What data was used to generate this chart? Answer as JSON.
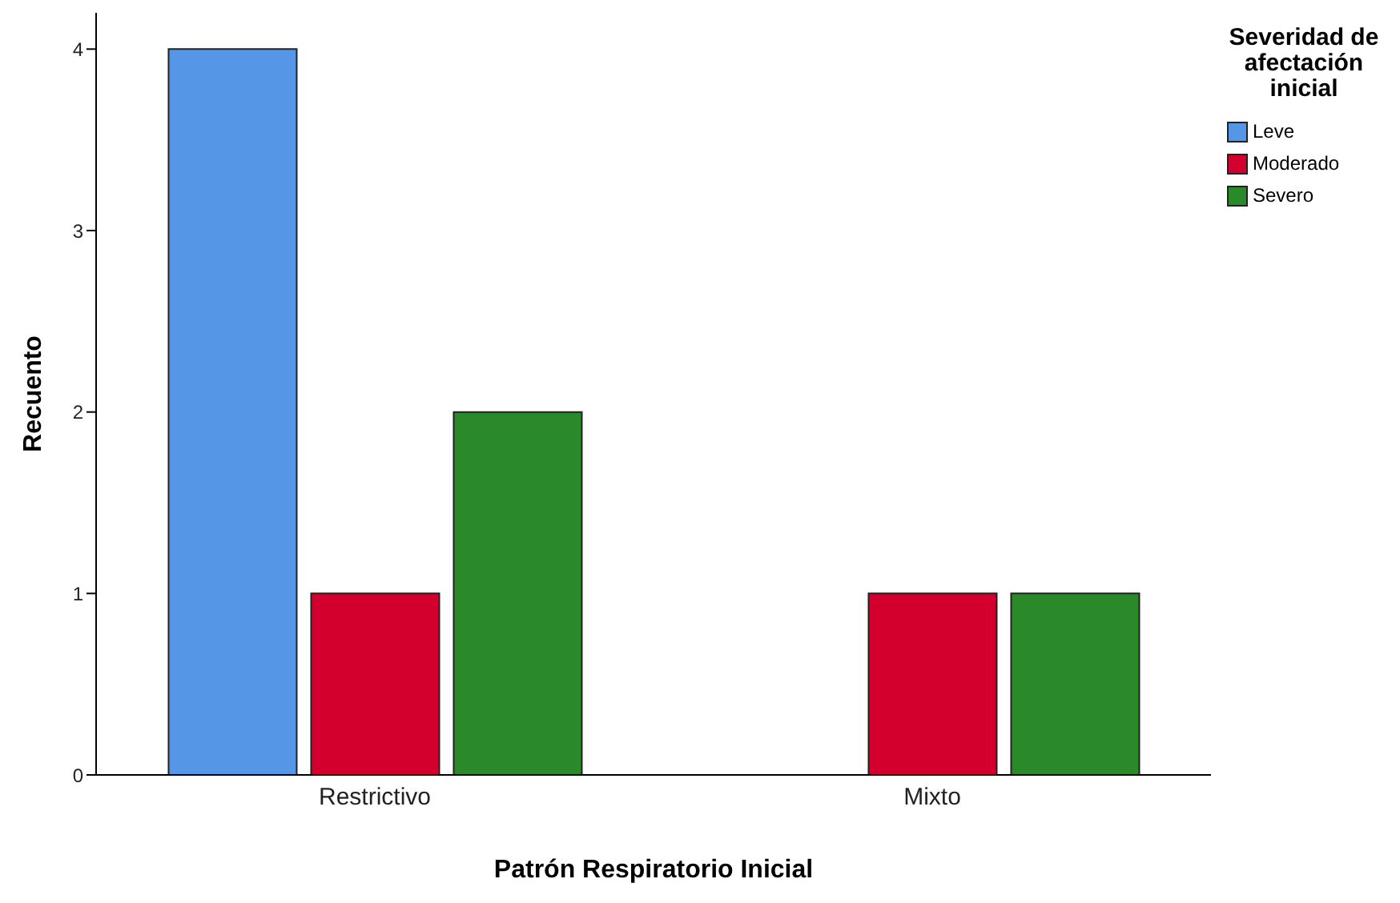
{
  "chart_data": {
    "type": "bar",
    "xlabel": "Patrón Respiratorio Inicial",
    "ylabel": "Recuento",
    "legend_title": "Severidad de afectación inicial",
    "categories": [
      "Restrictivo",
      "Mixto"
    ],
    "series": [
      {
        "name": "Leve",
        "color": "#5596e6",
        "values": [
          4,
          0
        ]
      },
      {
        "name": "Moderado",
        "color": "#d3002d",
        "values": [
          1,
          1
        ]
      },
      {
        "name": "Severo",
        "color": "#2a8a2a",
        "values": [
          2,
          1
        ]
      }
    ],
    "ylim": [
      0,
      4.2
    ],
    "yticks": [
      0,
      1,
      2,
      3,
      4
    ],
    "grid": false,
    "legend": "top right"
  }
}
